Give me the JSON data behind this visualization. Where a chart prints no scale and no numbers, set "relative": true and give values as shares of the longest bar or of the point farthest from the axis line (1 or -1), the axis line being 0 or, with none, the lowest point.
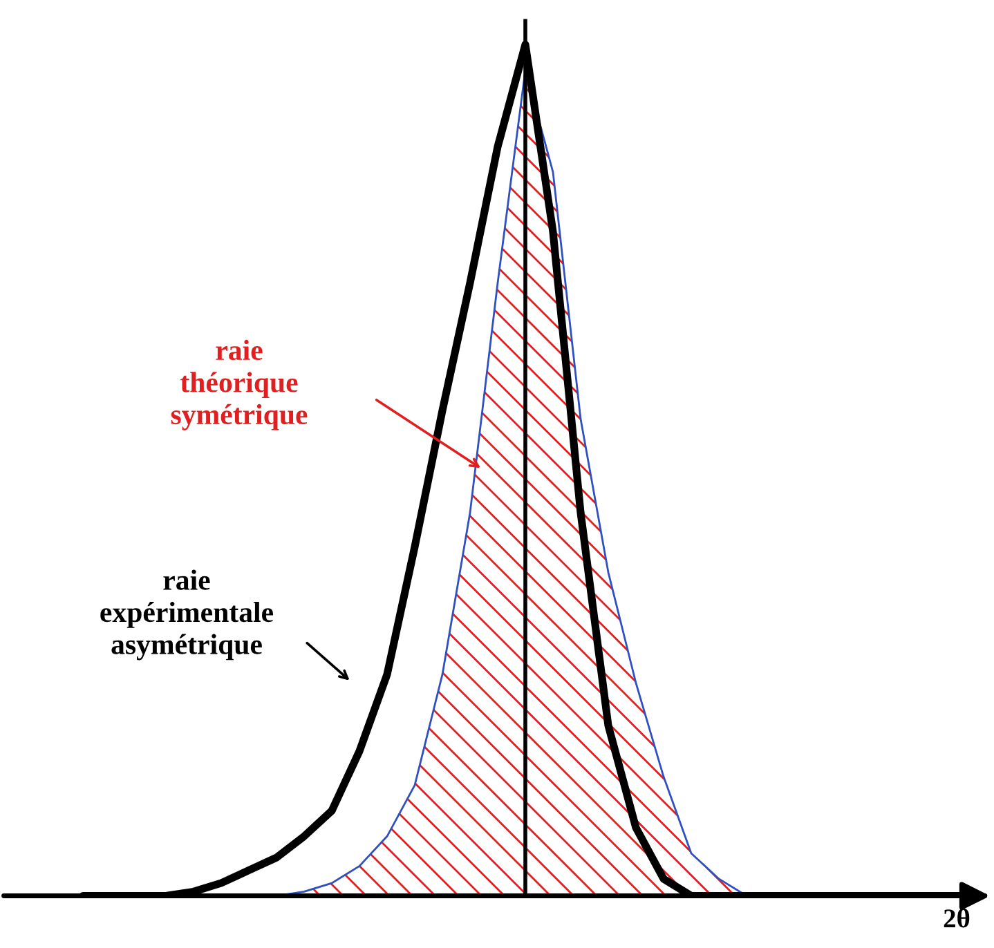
{
  "chart_data": {
    "type": "line",
    "relative": true,
    "xlabel": "2θ",
    "categories": [
      null,
      null,
      null,
      null,
      null,
      null,
      null,
      null,
      null,
      null,
      null,
      null,
      null,
      null,
      null,
      null,
      null,
      null,
      null,
      null,
      null,
      null,
      null,
      null,
      null,
      null,
      null,
      null,
      null,
      null,
      null,
      null,
      null
    ],
    "series": [
      {
        "type": "area",
        "color": "#e02020",
        "values": [
          0,
          0,
          0,
          0,
          0,
          0,
          0,
          0,
          0.005,
          0.015,
          0.035,
          0.07,
          0.13,
          0.26,
          0.45,
          0.72,
          0.97,
          0.85,
          0.56,
          0.38,
          0.25,
          0.14,
          0.05,
          0.02,
          0,
          0,
          0,
          0,
          0,
          0,
          0,
          0,
          0
        ]
      },
      {
        "color": "#000000",
        "values": [
          0,
          0,
          0,
          0,
          0.005,
          0.015,
          0.03,
          0.045,
          0.07,
          0.1,
          0.17,
          0.26,
          0.41,
          0.57,
          0.72,
          0.88,
          1.0,
          0.78,
          0.45,
          0.2,
          0.08,
          0.02,
          0,
          0,
          0,
          0,
          0,
          0,
          0,
          0,
          0,
          0,
          0
        ]
      }
    ],
    "annotations": [
      "raie\nthéorique\nsymétrique",
      "raie\nexpérimentale\nasymétrique"
    ],
    "legend": false
  }
}
